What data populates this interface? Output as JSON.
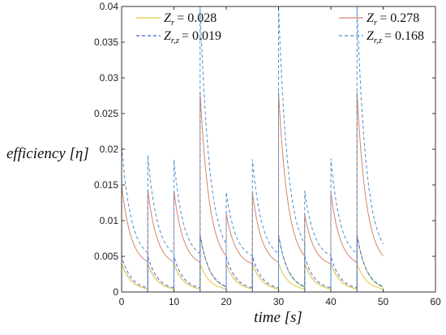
{
  "chart_data": {
    "type": "line",
    "title": "",
    "xlabel": "time [s]",
    "ylabel": "efficiency [η]",
    "xlim": [
      0,
      60
    ],
    "ylim": [
      0,
      0.04
    ],
    "xticks": [
      0,
      10,
      20,
      30,
      40,
      50,
      60
    ],
    "yticks": [
      0,
      0.005,
      0.01,
      0.015,
      0.02,
      0.025,
      0.03,
      0.035,
      0.04
    ],
    "xtick_labels": [
      "0",
      "10",
      "20",
      "30",
      "40",
      "50",
      "60"
    ],
    "ytick_labels": [
      "0",
      "0.005",
      "0.01",
      "0.015",
      "0.02",
      "0.025",
      "0.03",
      "0.035",
      "0.04"
    ],
    "grid": false,
    "legend_placement": "top",
    "pulses_x": [
      0,
      5,
      10,
      15,
      20,
      25,
      30,
      35,
      40,
      45
    ],
    "series": [
      {
        "legend_sym": "Z_r",
        "legend_sub": "r",
        "legend_value": "= 0.028",
        "style": "solid",
        "color": "#e3c53a",
        "peaks": [
          0.004,
          0.004,
          0.004,
          0.004,
          0.004,
          0.004,
          0.004,
          0.004,
          0.004,
          0.004
        ],
        "end_value": 0.0002
      },
      {
        "legend_sym": "Z_{r,z}",
        "legend_sub": "r,z",
        "legend_value": "= 0.019",
        "style": "dashed",
        "color": "#4a5fd0",
        "peaks": [
          0.005,
          0.005,
          0.005,
          0.008,
          0.005,
          0.005,
          0.008,
          0.005,
          0.005,
          0.008
        ],
        "end_value": 0.0003
      },
      {
        "legend_sym": "Z_r",
        "legend_sub": "r",
        "legend_value": "= 0.278",
        "style": "solid",
        "color": "#d4846a",
        "peaks": [
          0.015,
          0.0143,
          0.0142,
          0.028,
          0.011,
          0.014,
          0.028,
          0.0109,
          0.014,
          0.028
        ],
        "end_value": 0.0035
      },
      {
        "legend_sym": "Z_{r,z}",
        "legend_sub": "r,z",
        "legend_value": "= 0.168",
        "style": "dashed",
        "color": "#4d8fd0",
        "peaks": [
          0.0205,
          0.0192,
          0.0185,
          0.04,
          0.014,
          0.0186,
          0.04,
          0.0142,
          0.0187,
          0.04
        ],
        "end_value": 0.0045
      },
      {
        "legend_sym": "",
        "legend_sub": "",
        "legend_value": "",
        "style": "solid",
        "color": "#9bc36b",
        "peaks": [
          0.004,
          0.004,
          0.004,
          0.008,
          0.004,
          0.004,
          0.008,
          0.004,
          0.004,
          0.008
        ],
        "end_value": 0.0002
      }
    ]
  }
}
